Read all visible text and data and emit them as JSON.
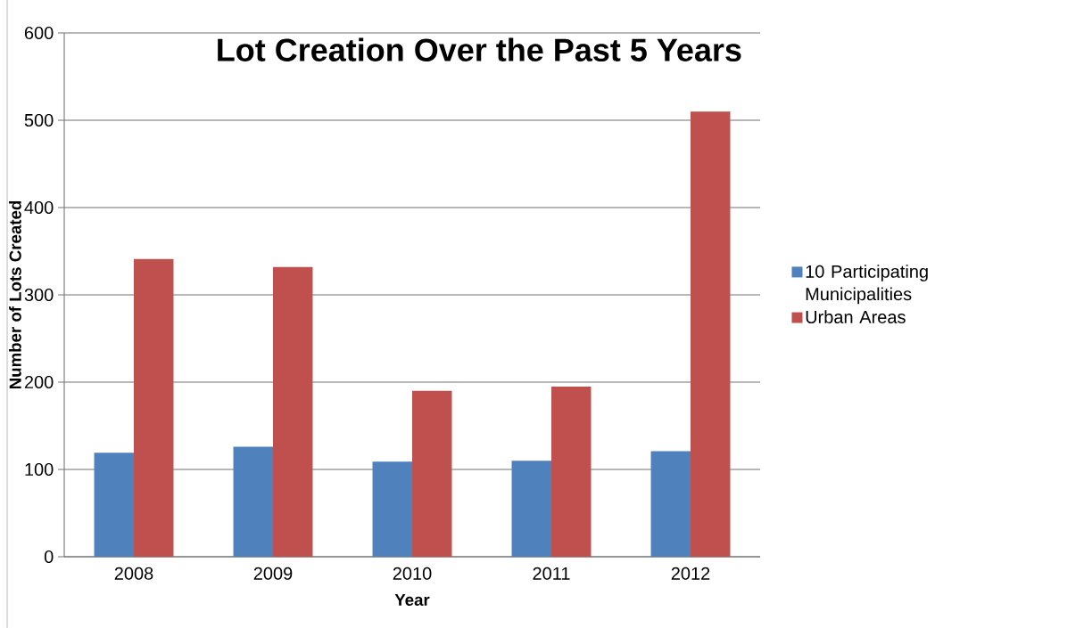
{
  "chart_data": {
    "type": "bar",
    "title": "Lot Creation Over the Past 5 Years",
    "xlabel": "Year",
    "ylabel": "Number of Lots Created",
    "categories": [
      "2008",
      "2009",
      "2010",
      "2011",
      "2012"
    ],
    "series": [
      {
        "name": "10 Participating Municipalities",
        "color": "#4f81bd",
        "values": [
          119,
          126,
          109,
          110,
          121
        ]
      },
      {
        "name": "Urban Areas",
        "color": "#c0504d",
        "values": [
          341,
          332,
          190,
          195,
          510
        ]
      }
    ],
    "ylim": [
      0,
      600
    ],
    "yticks": [
      0,
      100,
      200,
      300,
      400,
      500,
      600
    ],
    "grid": "y",
    "legend": "right"
  }
}
